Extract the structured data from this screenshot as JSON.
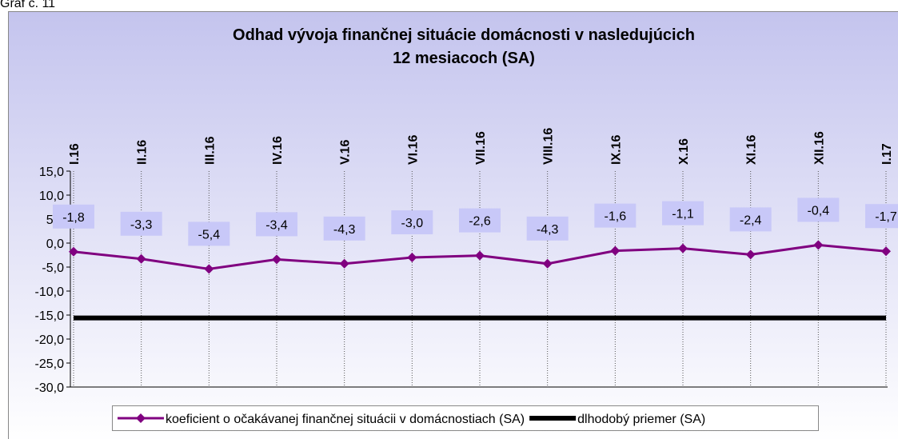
{
  "caption": "Graf č. 11",
  "chart_data": {
    "type": "line",
    "title": [
      "Odhad vývoja finančnej situácie domácnosti v nasledujúcich",
      "12 mesiacoch (SA)"
    ],
    "categories": [
      "I.16",
      "II.16",
      "III.16",
      "IV.16",
      "V.16",
      "VI.16",
      "VII.16",
      "VIII.16",
      "IX.16",
      "X.16",
      "XI.16",
      "XII.16",
      "I.17"
    ],
    "series": [
      {
        "name": "koeficient o očakávanej finančnej situácii v domácnostiach (SA)",
        "color": "#800080",
        "values": [
          -1.8,
          -3.3,
          -5.4,
          -3.4,
          -4.3,
          -3.0,
          -2.6,
          -4.3,
          -1.6,
          -1.1,
          -2.4,
          -0.4,
          -1.7
        ],
        "value_labels": [
          "-1,8",
          "-3,3",
          "-5,4",
          "-3,4",
          "-4,3",
          "-3,0",
          "-2,6",
          "-4,3",
          "-1,6",
          "-1,1",
          "-2,4",
          "-0,4",
          "-1,7"
        ]
      },
      {
        "name": "dlhodobý priemer (SA)",
        "color": "#000000",
        "values": [
          -15.6,
          -15.6,
          -15.6,
          -15.6,
          -15.6,
          -15.6,
          -15.6,
          -15.6,
          -15.6,
          -15.6,
          -15.6,
          -15.6,
          -15.6
        ]
      }
    ],
    "ylim": [
      -30,
      15
    ],
    "yticks": [
      {
        "value": -30,
        "label": "-30,0"
      },
      {
        "value": -25,
        "label": "-25,0"
      },
      {
        "value": -20,
        "label": "-20,0"
      },
      {
        "value": -15,
        "label": "-15,0"
      },
      {
        "value": -10,
        "label": "-10,0"
      },
      {
        "value": -5,
        "label": "-5,0"
      },
      {
        "value": 0,
        "label": "0,0"
      },
      {
        "value": 5,
        "label": "5,0"
      },
      {
        "value": 10,
        "label": "10,0"
      },
      {
        "value": 15,
        "label": "15,0"
      }
    ],
    "grid": "vertical",
    "legend": "bottom"
  }
}
